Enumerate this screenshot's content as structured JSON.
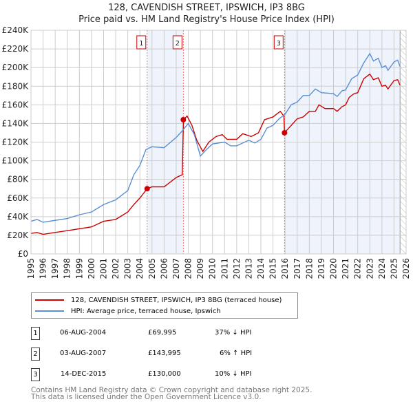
{
  "chart_data": {
    "type": "line",
    "title": "128, CAVENDISH STREET, IPSWICH, IP3 8BG",
    "subtitle": "Price paid vs. HM Land Registry's House Price Index (HPI)",
    "xlim": [
      1995,
      2026
    ],
    "ylim": [
      0,
      240000
    ],
    "x_ticks": [
      "1995",
      "1996",
      "1997",
      "1998",
      "1999",
      "2000",
      "2001",
      "2002",
      "2003",
      "2004",
      "2005",
      "2006",
      "2007",
      "2008",
      "2009",
      "2010",
      "2011",
      "2012",
      "2013",
      "2014",
      "2015",
      "2016",
      "2017",
      "2018",
      "2019",
      "2020",
      "2021",
      "2022",
      "2023",
      "2024",
      "2025",
      "2026"
    ],
    "y_ticks": [
      {
        "v": 0,
        "l": "£0"
      },
      {
        "v": 20000,
        "l": "£20K"
      },
      {
        "v": 40000,
        "l": "£40K"
      },
      {
        "v": 60000,
        "l": "£60K"
      },
      {
        "v": 80000,
        "l": "£80K"
      },
      {
        "v": 100000,
        "l": "£100K"
      },
      {
        "v": 120000,
        "l": "£120K"
      },
      {
        "v": 140000,
        "l": "£140K"
      },
      {
        "v": 160000,
        "l": "£160K"
      },
      {
        "v": 180000,
        "l": "£180K"
      },
      {
        "v": 200000,
        "l": "£200K"
      },
      {
        "v": 220000,
        "l": "£220K"
      },
      {
        "v": 240000,
        "l": "£240K"
      }
    ],
    "grid": true,
    "series": [
      {
        "name": "128, CAVENDISH STREET, IPSWICH, IP3 8BG (terraced house)",
        "color": "#cc0000",
        "points": [
          [
            1995,
            22
          ],
          [
            1995.5,
            23
          ],
          [
            1996,
            21
          ],
          [
            1997,
            23
          ],
          [
            1998,
            25
          ],
          [
            1999,
            27
          ],
          [
            2000,
            29
          ],
          [
            2001,
            35
          ],
          [
            2002,
            37
          ],
          [
            2003,
            45
          ],
          [
            2003.5,
            53
          ],
          [
            2004,
            60
          ],
          [
            2004.6,
            70
          ],
          [
            2005,
            72
          ],
          [
            2006,
            72
          ],
          [
            2007,
            82
          ],
          [
            2007.5,
            85
          ],
          [
            2007.6,
            144
          ],
          [
            2007.9,
            148
          ],
          [
            2008.3,
            138
          ],
          [
            2008.7,
            122
          ],
          [
            2009.2,
            110
          ],
          [
            2009.7,
            120
          ],
          [
            2010.3,
            126
          ],
          [
            2010.8,
            128
          ],
          [
            2011.2,
            123
          ],
          [
            2012,
            123
          ],
          [
            2012.5,
            129
          ],
          [
            2013.2,
            126
          ],
          [
            2013.8,
            130
          ],
          [
            2014.3,
            144
          ],
          [
            2015,
            147
          ],
          [
            2015.6,
            153
          ],
          [
            2015.9,
            148
          ],
          [
            2015.95,
            130
          ],
          [
            2016.3,
            135
          ],
          [
            2017,
            145
          ],
          [
            2017.5,
            147
          ],
          [
            2018,
            153
          ],
          [
            2018.5,
            153
          ],
          [
            2018.8,
            160
          ],
          [
            2019.3,
            156
          ],
          [
            2020,
            156
          ],
          [
            2020.3,
            153
          ],
          [
            2020.7,
            158
          ],
          [
            2021,
            160
          ],
          [
            2021.3,
            168
          ],
          [
            2021.7,
            172
          ],
          [
            2022,
            173
          ],
          [
            2022.5,
            188
          ],
          [
            2023,
            193
          ],
          [
            2023.3,
            187
          ],
          [
            2023.7,
            189
          ],
          [
            2024,
            180
          ],
          [
            2024.3,
            181
          ],
          [
            2024.5,
            177
          ],
          [
            2025,
            186
          ],
          [
            2025.3,
            187
          ],
          [
            2025.5,
            181
          ]
        ]
      },
      {
        "name": "HPI: Average price, terraced house, Ipswich",
        "color": "#5b8fd4",
        "points": [
          [
            1995,
            35
          ],
          [
            1995.5,
            37
          ],
          [
            1996,
            34
          ],
          [
            1997,
            36
          ],
          [
            1998,
            38
          ],
          [
            1999,
            42
          ],
          [
            2000,
            45
          ],
          [
            2001,
            53
          ],
          [
            2002,
            58
          ],
          [
            2003,
            68
          ],
          [
            2003.5,
            85
          ],
          [
            2004,
            95
          ],
          [
            2004.5,
            112
          ],
          [
            2005,
            115
          ],
          [
            2006,
            114
          ],
          [
            2007,
            125
          ],
          [
            2007.5,
            132
          ],
          [
            2008,
            140
          ],
          [
            2008.5,
            128
          ],
          [
            2009,
            105
          ],
          [
            2009.5,
            112
          ],
          [
            2010,
            118
          ],
          [
            2011,
            120
          ],
          [
            2011.5,
            116
          ],
          [
            2012,
            116
          ],
          [
            2013,
            122
          ],
          [
            2013.5,
            119
          ],
          [
            2014,
            123
          ],
          [
            2014.5,
            135
          ],
          [
            2015,
            138
          ],
          [
            2015.5,
            145
          ],
          [
            2016,
            150
          ],
          [
            2016.5,
            160
          ],
          [
            2017,
            163
          ],
          [
            2017.5,
            170
          ],
          [
            2018,
            170
          ],
          [
            2018.5,
            177
          ],
          [
            2019,
            173
          ],
          [
            2020,
            172
          ],
          [
            2020.3,
            169
          ],
          [
            2020.7,
            175
          ],
          [
            2021,
            176
          ],
          [
            2021.5,
            188
          ],
          [
            2022,
            192
          ],
          [
            2022.5,
            205
          ],
          [
            2023,
            215
          ],
          [
            2023.3,
            207
          ],
          [
            2023.7,
            210
          ],
          [
            2024,
            200
          ],
          [
            2024.3,
            202
          ],
          [
            2024.5,
            197
          ],
          [
            2025,
            206
          ],
          [
            2025.3,
            208
          ],
          [
            2025.5,
            201
          ]
        ]
      }
    ],
    "y_units": "thousands GBP in points",
    "sales": [
      {
        "label": "1",
        "x": 2004.6,
        "price": 69995
      },
      {
        "label": "2",
        "x": 2007.59,
        "price": 143995
      },
      {
        "label": "3",
        "x": 2015.95,
        "price": 130000
      }
    ],
    "shaded": [
      [
        2004.6,
        2007.59
      ],
      [
        2015.95,
        2025.5
      ]
    ],
    "forecast_start": 2025.5,
    "legend_placement": "below"
  },
  "legend": [
    "128, CAVENDISH STREET, IPSWICH, IP3 8BG (terraced house)",
    "HPI: Average price, terraced house, Ipswich"
  ],
  "colors": {
    "red": "#cc0000",
    "blue": "#5b8fd4",
    "shade": "#eef3fc"
  },
  "transactions": [
    {
      "n": "1",
      "date": "06-AUG-2004",
      "price": "£69,995",
      "hpi": "37% ↓ HPI"
    },
    {
      "n": "2",
      "date": "03-AUG-2007",
      "price": "£143,995",
      "hpi": "6% ↑ HPI"
    },
    {
      "n": "3",
      "date": "14-DEC-2015",
      "price": "£130,000",
      "hpi": "10% ↓ HPI"
    }
  ],
  "footer": [
    "Contains HM Land Registry data © Crown copyright and database right 2025.",
    "This data is licensed under the Open Government Licence v3.0."
  ]
}
